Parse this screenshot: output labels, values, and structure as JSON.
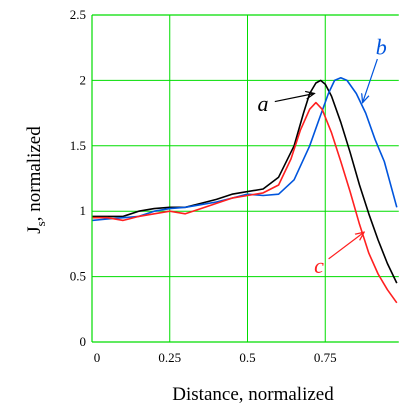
{
  "chart_data": {
    "type": "line",
    "xlabel": "Distance, normalized",
    "ylabel_main": "J",
    "ylabel_sub": "s",
    "ylabel_rest": ", normalized",
    "xlim": [
      0,
      0.98
    ],
    "ylim": [
      0,
      2.5
    ],
    "grid": true,
    "grid_color": "#00dd00",
    "x_ticks": [
      {
        "value": 0,
        "label": "0"
      },
      {
        "value": 0.25,
        "label": "0.25"
      },
      {
        "value": 0.5,
        "label": "0.5"
      },
      {
        "value": 0.75,
        "label": "0.75"
      }
    ],
    "y_ticks": [
      {
        "value": 0,
        "label": "0"
      },
      {
        "value": 0.5,
        "label": "0.5"
      },
      {
        "value": 1,
        "label": "1"
      },
      {
        "value": 1.5,
        "label": "1.5"
      },
      {
        "value": 2,
        "label": "2"
      },
      {
        "value": 2.5,
        "label": "2.5"
      }
    ],
    "series": [
      {
        "name": "a",
        "color": "#000000",
        "points": [
          [
            0,
            0.96
          ],
          [
            0.05,
            0.96
          ],
          [
            0.1,
            0.96
          ],
          [
            0.15,
            1.0
          ],
          [
            0.2,
            1.02
          ],
          [
            0.25,
            1.03
          ],
          [
            0.3,
            1.03
          ],
          [
            0.35,
            1.06
          ],
          [
            0.4,
            1.09
          ],
          [
            0.45,
            1.13
          ],
          [
            0.5,
            1.15
          ],
          [
            0.55,
            1.17
          ],
          [
            0.6,
            1.26
          ],
          [
            0.65,
            1.5
          ],
          [
            0.68,
            1.75
          ],
          [
            0.7,
            1.9
          ],
          [
            0.72,
            1.98
          ],
          [
            0.735,
            2.0
          ],
          [
            0.75,
            1.97
          ],
          [
            0.77,
            1.88
          ],
          [
            0.8,
            1.68
          ],
          [
            0.83,
            1.45
          ],
          [
            0.86,
            1.2
          ],
          [
            0.89,
            0.98
          ],
          [
            0.92,
            0.78
          ],
          [
            0.95,
            0.6
          ],
          [
            0.98,
            0.45
          ]
        ]
      },
      {
        "name": "b",
        "color": "#0055dd",
        "points": [
          [
            0,
            0.93
          ],
          [
            0.05,
            0.94
          ],
          [
            0.1,
            0.95
          ],
          [
            0.15,
            0.96
          ],
          [
            0.2,
            1.0
          ],
          [
            0.25,
            1.02
          ],
          [
            0.3,
            1.03
          ],
          [
            0.35,
            1.05
          ],
          [
            0.4,
            1.07
          ],
          [
            0.45,
            1.1
          ],
          [
            0.5,
            1.13
          ],
          [
            0.55,
            1.12
          ],
          [
            0.6,
            1.13
          ],
          [
            0.65,
            1.24
          ],
          [
            0.7,
            1.5
          ],
          [
            0.73,
            1.7
          ],
          [
            0.76,
            1.9
          ],
          [
            0.78,
            2.0
          ],
          [
            0.8,
            2.02
          ],
          [
            0.82,
            2.0
          ],
          [
            0.85,
            1.9
          ],
          [
            0.88,
            1.75
          ],
          [
            0.91,
            1.55
          ],
          [
            0.94,
            1.38
          ],
          [
            0.98,
            1.03
          ]
        ]
      },
      {
        "name": "c",
        "color": "#ff2020",
        "points": [
          [
            0,
            0.95
          ],
          [
            0.05,
            0.95
          ],
          [
            0.1,
            0.93
          ],
          [
            0.15,
            0.96
          ],
          [
            0.2,
            0.98
          ],
          [
            0.25,
            1.0
          ],
          [
            0.3,
            0.98
          ],
          [
            0.35,
            1.02
          ],
          [
            0.4,
            1.06
          ],
          [
            0.45,
            1.1
          ],
          [
            0.5,
            1.12
          ],
          [
            0.55,
            1.14
          ],
          [
            0.6,
            1.2
          ],
          [
            0.64,
            1.4
          ],
          [
            0.67,
            1.62
          ],
          [
            0.7,
            1.78
          ],
          [
            0.72,
            1.83
          ],
          [
            0.74,
            1.78
          ],
          [
            0.77,
            1.6
          ],
          [
            0.8,
            1.38
          ],
          [
            0.83,
            1.15
          ],
          [
            0.86,
            0.9
          ],
          [
            0.89,
            0.68
          ],
          [
            0.92,
            0.52
          ],
          [
            0.95,
            0.4
          ],
          [
            0.98,
            0.3
          ]
        ]
      }
    ],
    "annotations": [
      {
        "text": "a",
        "color": "#000000",
        "x": 0.55,
        "y": 1.82,
        "arrow_to": [
          0.715,
          1.9
        ]
      },
      {
        "text": "b",
        "color": "#0055dd",
        "x": 0.93,
        "y": 2.25,
        "arrow_to": [
          0.87,
          1.83
        ]
      },
      {
        "text": "c",
        "color": "#ff2020",
        "x": 0.73,
        "y": 0.58,
        "arrow_to": [
          0.875,
          0.84
        ]
      }
    ]
  }
}
